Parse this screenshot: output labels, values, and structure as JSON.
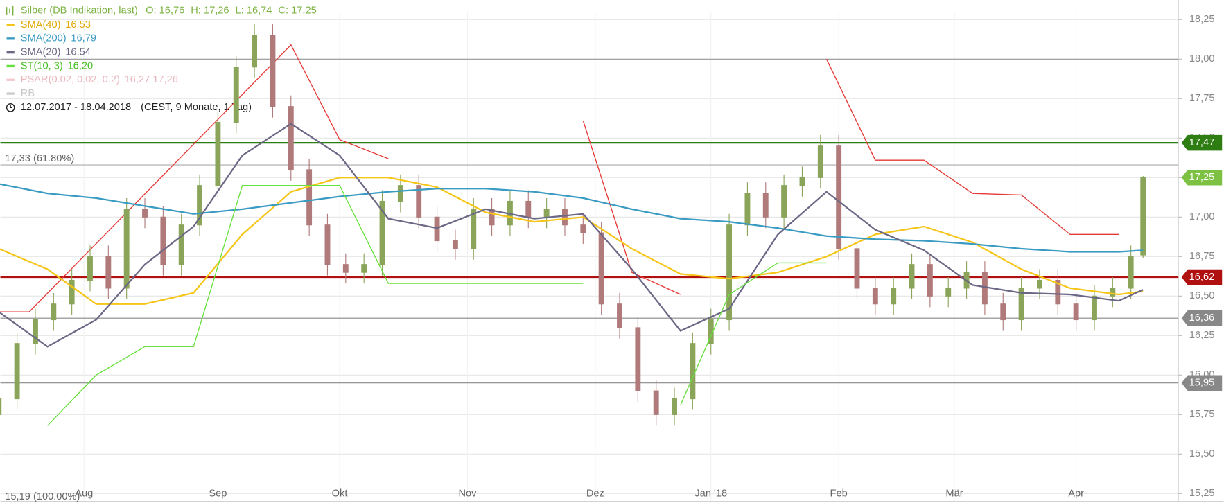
{
  "chart_data": {
    "type": "candlestick",
    "title": "Silber (DB Indikation, last)",
    "title_color": "#7cb342",
    "ohlc_text": [
      "O: 16,76",
      "H: 17,26",
      "L: 16,74",
      "C: 17,25"
    ],
    "period": "12.07.2017 - 18.04.2018",
    "period_note": "(CEST, 9 Monate, 1 Tag)",
    "up_color": "#8aa55a",
    "down_color": "#b07a7a",
    "x": [
      0,
      3,
      6,
      9,
      12,
      15,
      18,
      21,
      24,
      27,
      30,
      33,
      36,
      39,
      42,
      45,
      48,
      51,
      54,
      57,
      60,
      63,
      66,
      69,
      72,
      75,
      78,
      81,
      84,
      87,
      90,
      93,
      96,
      99,
      102,
      105,
      108,
      111,
      114,
      117,
      120,
      123,
      126,
      129,
      132,
      135,
      138,
      141,
      144,
      147,
      150,
      153,
      156,
      159,
      162,
      165,
      168,
      171,
      174,
      177,
      180,
      183,
      186,
      188
    ],
    "open": [
      15.75,
      15.85,
      16.2,
      16.35,
      16.45,
      16.6,
      16.75,
      16.55,
      17.05,
      17.0,
      16.7,
      16.95,
      17.2,
      17.6,
      17.95,
      18.15,
      17.7,
      17.3,
      16.95,
      16.7,
      16.65,
      16.7,
      17.1,
      17.2,
      17.0,
      16.85,
      16.8,
      17.05,
      16.95,
      17.1,
      17.0,
      17.05,
      16.95,
      16.9,
      16.45,
      16.3,
      15.9,
      15.75,
      15.85,
      16.2,
      16.35,
      16.95,
      17.15,
      17.0,
      17.2,
      17.25,
      17.45,
      16.8,
      16.55,
      16.45,
      16.55,
      16.7,
      16.5,
      16.55,
      16.65,
      16.45,
      16.35,
      16.55,
      16.6,
      16.45,
      16.35,
      16.5,
      16.55,
      16.76
    ],
    "high": [
      15.92,
      16.27,
      16.42,
      16.52,
      16.67,
      16.82,
      16.82,
      17.12,
      17.12,
      17.07,
      17.02,
      17.27,
      17.67,
      18.02,
      18.22,
      18.22,
      17.77,
      17.37,
      17.02,
      16.77,
      16.77,
      17.17,
      17.27,
      17.27,
      17.07,
      16.92,
      17.12,
      17.12,
      17.17,
      17.17,
      17.12,
      17.12,
      17.02,
      16.97,
      16.52,
      16.37,
      15.97,
      15.92,
      16.27,
      16.42,
      17.02,
      17.22,
      17.22,
      17.27,
      17.32,
      17.52,
      17.52,
      16.87,
      16.62,
      16.62,
      16.77,
      16.77,
      16.62,
      16.72,
      16.72,
      16.52,
      16.62,
      16.67,
      16.67,
      16.52,
      16.57,
      16.62,
      16.82,
      17.26
    ],
    "low": [
      15.68,
      15.78,
      16.13,
      16.28,
      16.38,
      16.53,
      16.48,
      16.48,
      16.93,
      16.63,
      16.63,
      16.88,
      17.13,
      17.53,
      17.88,
      17.63,
      17.23,
      16.88,
      16.63,
      16.58,
      16.58,
      16.63,
      17.03,
      16.93,
      16.78,
      16.73,
      16.73,
      16.88,
      16.88,
      16.93,
      16.93,
      16.88,
      16.83,
      16.38,
      16.23,
      15.83,
      15.68,
      15.68,
      15.78,
      16.13,
      16.28,
      16.88,
      16.93,
      16.93,
      17.13,
      17.18,
      16.73,
      16.48,
      16.38,
      16.38,
      16.48,
      16.43,
      16.43,
      16.48,
      16.38,
      16.28,
      16.28,
      16.48,
      16.38,
      16.28,
      16.28,
      16.43,
      16.48,
      16.74
    ],
    "close": [
      15.85,
      16.2,
      16.35,
      16.45,
      16.6,
      16.75,
      16.55,
      17.05,
      17.0,
      16.7,
      16.95,
      17.2,
      17.6,
      17.95,
      18.15,
      17.7,
      17.3,
      16.95,
      16.7,
      16.65,
      16.7,
      17.1,
      17.2,
      17.0,
      16.85,
      16.8,
      17.05,
      16.95,
      17.1,
      17.0,
      17.05,
      16.95,
      16.9,
      16.45,
      16.3,
      15.9,
      15.75,
      15.85,
      16.2,
      16.35,
      16.95,
      17.15,
      17.0,
      17.2,
      17.25,
      17.45,
      16.8,
      16.55,
      16.45,
      16.55,
      16.7,
      16.5,
      16.55,
      16.65,
      16.45,
      16.35,
      16.55,
      16.6,
      16.45,
      16.35,
      16.5,
      16.55,
      16.75,
      17.25
    ],
    "xlim": [
      0.26,
      193.8
    ],
    "xticks": [
      {
        "value": 14,
        "label": "Aug"
      },
      {
        "value": 36,
        "label": "Sep"
      },
      {
        "value": 56,
        "label": "Okt"
      },
      {
        "value": 77,
        "label": "Nov"
      },
      {
        "value": 98,
        "label": "Dez"
      },
      {
        "value": 117,
        "label": "Jan '18"
      },
      {
        "value": 138,
        "label": "Feb"
      },
      {
        "value": 157,
        "label": "Mär"
      },
      {
        "value": 177,
        "label": "Apr"
      }
    ],
    "ylim": [
      15.2,
      18.3
    ],
    "yticks": [
      {
        "value": 15.25,
        "label": "15,25"
      },
      {
        "value": 15.5,
        "label": "15,50"
      },
      {
        "value": 15.75,
        "label": "15,75"
      },
      {
        "value": 16,
        "label": "16,00"
      },
      {
        "value": 16.25,
        "label": "16,25"
      },
      {
        "value": 16.5,
        "label": "16,50"
      },
      {
        "value": 16.75,
        "label": "16,75"
      },
      {
        "value": 17,
        "label": "17,00"
      },
      {
        "value": 17.25,
        "label": "17,25"
      },
      {
        "value": 17.5,
        "label": "17,50"
      },
      {
        "value": 17.75,
        "label": "17,75"
      },
      {
        "value": 18,
        "label": "18,00"
      },
      {
        "value": 18.25,
        "label": "18,25"
      }
    ],
    "grid": true,
    "overlays": [
      {
        "name": "SMA(40)",
        "legend_value": "16,53",
        "color": "#f5c518",
        "text_color": "#e0a800",
        "x": [
          0,
          8,
          16,
          24,
          32,
          40,
          48,
          56,
          64,
          72,
          80,
          88,
          96,
          104,
          112,
          120,
          128,
          136,
          144,
          152,
          160,
          168,
          176,
          184,
          188
        ],
        "values": [
          16.8,
          16.67,
          16.45,
          16.45,
          16.52,
          16.89,
          17.16,
          17.25,
          17.25,
          17.19,
          17.03,
          16.97,
          17.0,
          16.8,
          16.64,
          16.61,
          16.65,
          16.75,
          16.89,
          16.94,
          16.84,
          16.67,
          16.55,
          16.51,
          16.53
        ]
      },
      {
        "name": "SMA(200)",
        "legend_value": "16,79",
        "color": "#3a9bc2",
        "text_color": "#3a9bc2",
        "x": [
          0,
          8,
          16,
          24,
          32,
          40,
          48,
          56,
          64,
          72,
          80,
          88,
          96,
          104,
          112,
          120,
          128,
          136,
          144,
          152,
          160,
          168,
          176,
          184,
          188
        ],
        "values": [
          17.21,
          17.15,
          17.12,
          17.07,
          17.02,
          17.05,
          17.09,
          17.13,
          17.16,
          17.18,
          17.18,
          17.16,
          17.12,
          17.05,
          16.99,
          16.97,
          16.93,
          16.88,
          16.86,
          16.85,
          16.83,
          16.8,
          16.78,
          16.78,
          16.79
        ]
      },
      {
        "name": "SMA(20)",
        "legend_value": "16,54",
        "color": "#6b6785",
        "text_color": "#6b6785",
        "x": [
          0,
          8,
          16,
          24,
          32,
          40,
          48,
          56,
          64,
          72,
          80,
          88,
          96,
          104,
          112,
          120,
          128,
          136,
          144,
          152,
          160,
          168,
          176,
          184,
          188
        ],
        "values": [
          16.4,
          16.18,
          16.35,
          16.7,
          16.94,
          17.39,
          17.59,
          17.39,
          16.99,
          16.93,
          17.05,
          16.99,
          17.02,
          16.67,
          16.28,
          16.42,
          16.89,
          17.16,
          16.92,
          16.79,
          16.57,
          16.52,
          16.51,
          16.47,
          16.54
        ]
      },
      {
        "name": "ST(10, 3)",
        "legend_value": "16,20",
        "color": "#66e03a",
        "text_color": "#44c020",
        "x": [
          0,
          8,
          16,
          24,
          32,
          40,
          48,
          56,
          64,
          72,
          80,
          88,
          96,
          104,
          112,
          120,
          128,
          136,
          144,
          152,
          160,
          168,
          176,
          184,
          188
        ],
        "values": [
          null,
          15.68,
          16.0,
          16.18,
          16.18,
          17.2,
          17.2,
          17.2,
          16.58,
          16.58,
          16.58,
          16.58,
          16.58,
          null,
          15.81,
          16.51,
          16.71,
          16.71,
          null,
          null,
          null,
          null,
          null,
          null,
          null
        ]
      },
      {
        "name": "PSAR(0.02, 0.02, 0.2)",
        "legend_value": "16,27  17,26",
        "color": "#f2c9ce",
        "text_color": "#e8b8be"
      },
      {
        "name": "RB",
        "color": "#cccccc",
        "text_color": "#c8c8c8"
      }
    ],
    "stop_line": {
      "color": "#e53935",
      "x": [
        0,
        5,
        48,
        56,
        64,
        72,
        96,
        104,
        112,
        120,
        136,
        144,
        152,
        160,
        168,
        176,
        184
      ],
      "values": [
        16.4,
        16.4,
        18.09,
        17.49,
        17.37,
        null,
        17.61,
        16.65,
        16.51,
        null,
        18.0,
        17.36,
        17.36,
        17.15,
        17.14,
        16.89,
        16.89
      ]
    },
    "levels": [
      {
        "value": 18.0,
        "color": "#999999",
        "width": 1
      },
      {
        "value": 17.47,
        "label": "17,47",
        "color": "#2e7d12",
        "width": 2,
        "style": "box"
      },
      {
        "value": 17.33,
        "label": "17,33 (61.80%)",
        "color": "#aaaaaa",
        "width": 1,
        "style": "note"
      },
      {
        "value": 17.25,
        "label": "17,25",
        "color": "#7cc142",
        "style": "box"
      },
      {
        "value": 16.62,
        "label": "16,62",
        "color": "#b01010",
        "width": 2,
        "style": "box"
      },
      {
        "value": 16.36,
        "label": "16,36",
        "color": "#888888",
        "width": 1,
        "style": "box"
      },
      {
        "value": 15.95,
        "label": "15,95",
        "color": "#888888",
        "width": 1,
        "style": "box"
      },
      {
        "value": 15.19,
        "label": "15,19 (100.00%)",
        "color": "#888888",
        "style": "note"
      }
    ]
  }
}
